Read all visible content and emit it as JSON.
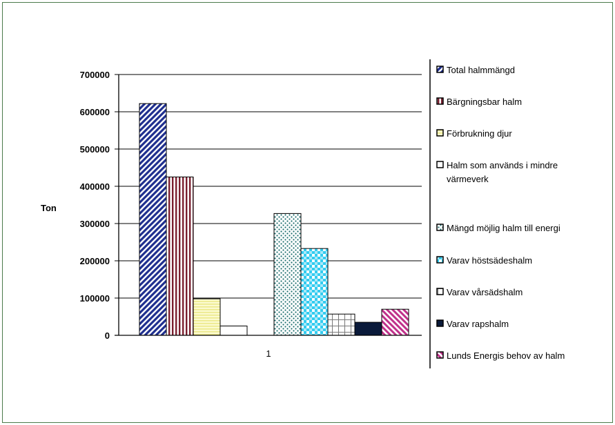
{
  "chart_data": {
    "type": "bar",
    "title": "",
    "xlabel": "",
    "ylabel": "Ton",
    "categories": [
      "1"
    ],
    "ylim": [
      0,
      700000
    ],
    "yticks": [
      0,
      100000,
      200000,
      300000,
      400000,
      500000,
      600000,
      700000
    ],
    "grid": true,
    "legend_position": "right",
    "series": [
      {
        "name": "Total halmmängd",
        "values": [
          622000
        ],
        "color": "#1f2f8f",
        "pattern": "diagonal-stripes"
      },
      {
        "name": "Bärgningsbar halm",
        "values": [
          425000
        ],
        "color": "#7a1f2f",
        "pattern": "vertical-stripes"
      },
      {
        "name": "Förbrukning djur",
        "values": [
          98000
        ],
        "color": "#f0ee9a",
        "pattern": "horizontal-lines"
      },
      {
        "name": "Halm som används i mindre värmeverk",
        "values": [
          25000
        ],
        "color": "#ffffff",
        "pattern": "solid"
      },
      {
        "name": "",
        "values": [
          0
        ],
        "color": "#ffffff",
        "pattern": "none"
      },
      {
        "name": "Mängd möjlig halm till energi",
        "values": [
          327000
        ],
        "color": "#3a8a8a",
        "pattern": "dots"
      },
      {
        "name": "Varav höstsädeshalm",
        "values": [
          233000
        ],
        "color": "#33ccf0",
        "pattern": "checker"
      },
      {
        "name": "Varav vårsädshalm",
        "values": [
          57000
        ],
        "color": "#888888",
        "pattern": "grid"
      },
      {
        "name": "Varav rapshalm",
        "values": [
          35000
        ],
        "color": "#0a1a3a",
        "pattern": "solid"
      },
      {
        "name": "Lunds Energis behov av halm",
        "values": [
          70000
        ],
        "color": "#c0308a",
        "pattern": "reverse-diagonal"
      }
    ]
  }
}
